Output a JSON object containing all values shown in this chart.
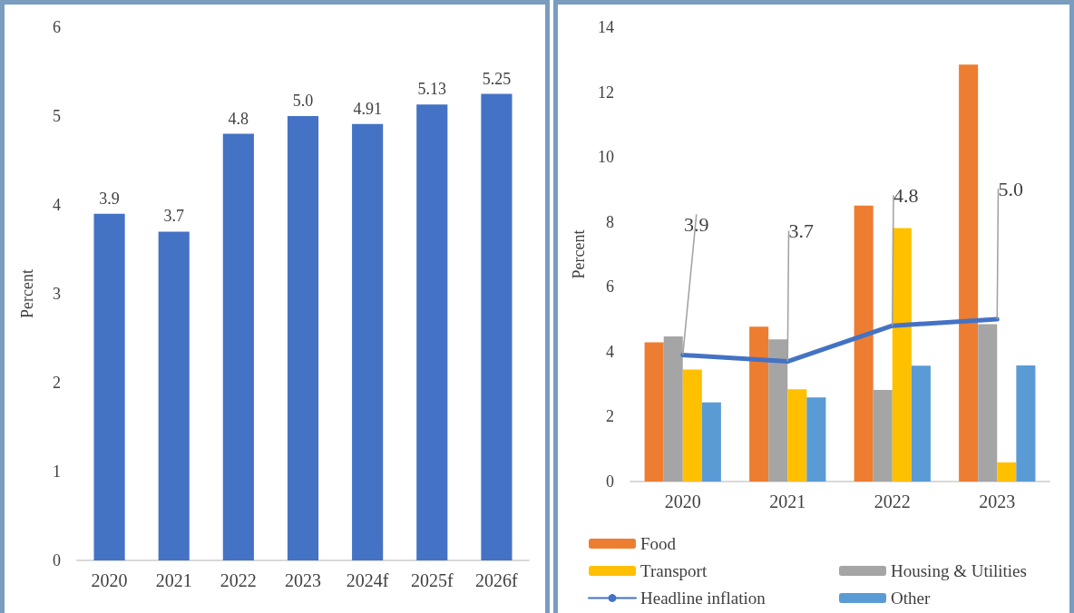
{
  "chart_data": [
    {
      "type": "bar",
      "ylabel": "Percent",
      "categories": [
        "2020",
        "2021",
        "2022",
        "2023",
        "2024f",
        "2025f",
        "2026f"
      ],
      "values": [
        3.9,
        3.7,
        4.8,
        5.0,
        4.91,
        5.13,
        5.25
      ],
      "value_labels": [
        "3.9",
        "3.7",
        "4.8",
        "5.0",
        "4.91",
        "5.13",
        "5.25"
      ],
      "color": "#4472c4",
      "ylim": [
        0,
        6
      ],
      "yticks": [
        0,
        1,
        2,
        3,
        4,
        5,
        6
      ],
      "grid": false,
      "legend": false
    },
    {
      "type": "bar",
      "ylabel": "Percent",
      "categories": [
        "2020",
        "2021",
        "2022",
        "2023"
      ],
      "series": [
        {
          "name": "Food",
          "color": "#ed7d31",
          "values": [
            4.29,
            4.77,
            8.5,
            12.85
          ]
        },
        {
          "name": "Housing & Utilities",
          "color": "#a5a5a5",
          "values": [
            4.47,
            4.38,
            2.82,
            4.85
          ]
        },
        {
          "name": "Transport",
          "color": "#ffc000",
          "values": [
            3.45,
            2.84,
            7.81,
            0.59
          ]
        },
        {
          "name": "Other",
          "color": "#5b9bd5",
          "values": [
            2.44,
            2.59,
            3.57,
            3.58
          ]
        },
        {
          "name": "Headline inflation",
          "type": "line",
          "color": "#4472c4",
          "values": [
            3.9,
            3.7,
            4.8,
            5.0
          ],
          "value_labels": [
            "3.9",
            "3.7",
            "4.8",
            "5.0"
          ]
        }
      ],
      "ylim": [
        0,
        14
      ],
      "yticks": [
        0,
        2,
        4,
        6,
        8,
        10,
        12,
        14
      ],
      "grid": false,
      "legend": "bottom",
      "marker": "none"
    }
  ]
}
